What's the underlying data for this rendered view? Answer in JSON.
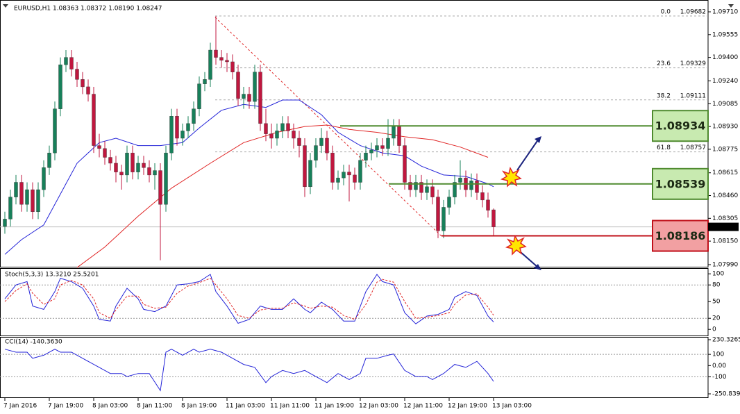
{
  "chart_data": [
    {
      "type": "candlestick",
      "title": "EURUSD,H1  1.08363 1.08372 1.08190 1.08247",
      "up_color": "#17805a",
      "down_color": "#c0173f",
      "xlim": [
        -0.875,
        126.625
      ],
      "ylim": [
        1.07971,
        1.09781
      ],
      "xticks": [
        {
          "value": 0,
          "label": "7 Jan 2016"
        },
        {
          "value": 8,
          "label": "7 Jan 19:00"
        },
        {
          "value": 16,
          "label": "8 Jan 03:00"
        },
        {
          "value": 24,
          "label": "8 Jan 11:00"
        },
        {
          "value": 32,
          "label": "8 Jan 19:00"
        },
        {
          "value": 40,
          "label": "11 Jan 03:00"
        },
        {
          "value": 48,
          "label": "11 Jan 11:00"
        },
        {
          "value": 56,
          "label": "11 Jan 19:00"
        },
        {
          "value": 64,
          "label": "12 Jan 03:00"
        },
        {
          "value": 72,
          "label": "12 Jan 11:00"
        },
        {
          "value": 80,
          "label": "12 Jan 19:00"
        },
        {
          "value": 88,
          "label": "13 Jan 03:00"
        }
      ],
      "yticks": [
        {
          "value": 1.0971,
          "label": "1.09710"
        },
        1.09555,
        {
          "value": 1.094,
          "label": "1.09400"
        },
        {
          "value": 1.0924,
          "label": "1.09240"
        },
        1.09085,
        {
          "value": 1.0893,
          "label": "1.08930"
        },
        1.08775,
        1.08615,
        {
          "value": 1.0846,
          "label": "1.08460"
        },
        1.08305,
        {
          "value": 1.0815,
          "label": "1.08150"
        },
        {
          "value": 1.0799,
          "label": "1.07990"
        }
      ],
      "ohlc": [
        [
          1.0825,
          1.0835,
          1.082,
          1.083
        ],
        [
          1.083,
          1.085,
          1.0825,
          1.0845
        ],
        [
          1.0845,
          1.086,
          1.084,
          1.0855
        ],
        [
          1.0855,
          1.086,
          1.0835,
          1.084
        ],
        [
          1.084,
          1.0855,
          1.0835,
          1.085
        ],
        [
          1.085,
          1.0855,
          1.083,
          1.0835
        ],
        [
          1.0835,
          1.0855,
          1.083,
          1.085
        ],
        [
          1.085,
          1.087,
          1.0845,
          1.0865
        ],
        [
          1.0865,
          1.088,
          1.086,
          1.0875
        ],
        [
          1.0875,
          1.091,
          1.087,
          1.0905
        ],
        [
          1.0905,
          1.094,
          1.09,
          1.0935
        ],
        [
          1.0935,
          1.0945,
          1.093,
          1.094
        ],
        [
          1.094,
          1.0945,
          1.0927,
          1.0932
        ],
        [
          1.0932,
          1.0937,
          1.092,
          1.0925
        ],
        [
          1.0925,
          1.093,
          1.0915,
          1.092
        ],
        [
          1.092,
          1.0925,
          1.091,
          1.0915
        ],
        [
          1.0915,
          1.092,
          1.0875,
          1.088
        ],
        [
          1.088,
          1.0888,
          1.0872,
          1.0878
        ],
        [
          1.0878,
          1.0883,
          1.0867,
          1.0872
        ],
        [
          1.0872,
          1.0877,
          1.0863,
          1.0868
        ],
        [
          1.0868,
          1.0873,
          1.0855,
          1.0862
        ],
        [
          1.0862,
          1.0867,
          1.085,
          1.086
        ],
        [
          1.086,
          1.088,
          1.0855,
          1.0875
        ],
        [
          1.0875,
          1.088,
          1.0857,
          1.0862
        ],
        [
          1.0862,
          1.0873,
          1.0857,
          1.0868
        ],
        [
          1.0868,
          1.0873,
          1.086,
          1.0865
        ],
        [
          1.0865,
          1.087,
          1.0855,
          1.086
        ],
        [
          1.086,
          1.0868,
          1.085,
          1.0863
        ],
        [
          1.0863,
          1.0868,
          1.0802,
          1.084
        ],
        [
          1.084,
          1.088,
          1.0835,
          1.0875
        ],
        [
          1.0875,
          1.0905,
          1.087,
          1.09
        ],
        [
          1.09,
          1.0905,
          1.088,
          1.0885
        ],
        [
          1.0885,
          1.0895,
          1.088,
          1.089
        ],
        [
          1.089,
          1.09,
          1.0885,
          1.0895
        ],
        [
          1.0895,
          1.091,
          1.089,
          1.0905
        ],
        [
          1.0905,
          1.0927,
          1.09,
          1.0922
        ],
        [
          1.0922,
          1.093,
          1.0917,
          1.0925
        ],
        [
          1.0925,
          1.095,
          1.092,
          1.0945
        ],
        [
          1.0945,
          1.0968,
          1.0935,
          1.094
        ],
        [
          1.094,
          1.0945,
          1.0933,
          1.0938
        ],
        [
          1.0938,
          1.0943,
          1.093,
          1.0937
        ],
        [
          1.0937,
          1.0942,
          1.0925,
          1.093
        ],
        [
          1.093,
          1.0935,
          1.0907,
          1.0912
        ],
        [
          1.0912,
          1.092,
          1.0905,
          1.0915
        ],
        [
          1.0915,
          1.092,
          1.0905,
          1.091
        ],
        [
          1.091,
          1.0935,
          1.0905,
          1.093
        ],
        [
          1.093,
          1.0935,
          1.089,
          1.0895
        ],
        [
          1.0895,
          1.0905,
          1.0883,
          1.0888
        ],
        [
          1.0888,
          1.0895,
          1.0878,
          1.0885
        ],
        [
          1.0885,
          1.0895,
          1.088,
          1.089
        ],
        [
          1.089,
          1.09,
          1.0885,
          1.0895
        ],
        [
          1.0895,
          1.09,
          1.0885,
          1.089
        ],
        [
          1.089,
          1.0895,
          1.0878,
          1.0885
        ],
        [
          1.0885,
          1.089,
          1.0872,
          1.088
        ],
        [
          1.088,
          1.0885,
          1.0845,
          1.0852
        ],
        [
          1.0852,
          1.0875,
          1.0847,
          1.087
        ],
        [
          1.087,
          1.0885,
          1.0865,
          1.088
        ],
        [
          1.088,
          1.0892,
          1.0875,
          1.0885
        ],
        [
          1.0885,
          1.089,
          1.087,
          1.0875
        ],
        [
          1.0875,
          1.088,
          1.085,
          1.0855
        ],
        [
          1.0855,
          1.0863,
          1.085,
          1.0858
        ],
        [
          1.0858,
          1.0867,
          1.0853,
          1.0862
        ],
        [
          1.0862,
          1.0867,
          1.0842,
          1.086
        ],
        [
          1.086,
          1.0865,
          1.085,
          1.0855
        ],
        [
          1.0855,
          1.0875,
          1.085,
          1.087
        ],
        [
          1.087,
          1.088,
          1.0865,
          1.0875
        ],
        [
          1.0875,
          1.0882,
          1.087,
          1.0877
        ],
        [
          1.0877,
          1.0885,
          1.0872,
          1.088
        ],
        [
          1.088,
          1.0885,
          1.0873,
          1.0878
        ],
        [
          1.0878,
          1.0898,
          1.0873,
          1.0885
        ],
        [
          1.0885,
          1.0898,
          1.088,
          1.0893
        ],
        [
          1.0893,
          1.0898,
          1.0875,
          1.088
        ],
        [
          1.088,
          1.0885,
          1.085,
          1.0855
        ],
        [
          1.0855,
          1.086,
          1.0845,
          1.085
        ],
        [
          1.085,
          1.086,
          1.0845,
          1.0855
        ],
        [
          1.0855,
          1.086,
          1.0843,
          1.0848
        ],
        [
          1.0848,
          1.0857,
          1.0843,
          1.0852
        ],
        [
          1.0852,
          1.0857,
          1.084,
          1.0845
        ],
        [
          1.0845,
          1.085,
          1.0817,
          1.0822
        ],
        [
          1.0822,
          1.0843,
          1.0817,
          1.0838
        ],
        [
          1.0838,
          1.085,
          1.0833,
          1.0845
        ],
        [
          1.0845,
          1.086,
          1.084,
          1.0855
        ],
        [
          1.0855,
          1.087,
          1.085,
          1.0858
        ],
        [
          1.0858,
          1.0863,
          1.0845,
          1.085
        ],
        [
          1.085,
          1.0861,
          1.0845,
          1.0856
        ],
        [
          1.0856,
          1.0861,
          1.0843,
          1.0848
        ],
        [
          1.0848,
          1.0853,
          1.0838,
          1.0843
        ],
        [
          1.0843,
          1.0848,
          1.0831,
          1.0836
        ],
        [
          1.08363,
          1.08372,
          1.0819,
          1.08247
        ]
      ],
      "ma_lines": [
        {
          "color": "#2323d8",
          "x": [
            0,
            3,
            7,
            10,
            13,
            17,
            20,
            24,
            28,
            32,
            35,
            39,
            43,
            47,
            50,
            53,
            57,
            60,
            64,
            68,
            72,
            75,
            79,
            83,
            87,
            88
          ],
          "values": [
            1.0806,
            1.0816,
            1.0826,
            1.0847,
            1.0868,
            1.0882,
            1.0885,
            1.088,
            1.088,
            1.0882,
            1.0892,
            1.0904,
            1.0908,
            1.0906,
            1.0911,
            1.0911,
            1.0901,
            1.0889,
            1.088,
            1.0875,
            1.0873,
            1.0866,
            1.086,
            1.0859,
            1.0854,
            1.0852
          ]
        },
        {
          "color": "#e02424",
          "x": [
            13,
            18,
            24,
            30,
            37,
            43,
            49,
            54,
            58,
            62,
            67,
            72,
            77,
            82,
            87
          ],
          "values": [
            1.0797,
            1.0811,
            1.0832,
            1.0851,
            1.0868,
            1.0882,
            1.0889,
            1.0893,
            1.0894,
            1.0891,
            1.0889,
            1.0886,
            1.0884,
            1.0879,
            1.0872
          ]
        }
      ],
      "last_price": 1.08247,
      "fib_levels": [
        {
          "ratio": "0.0",
          "price": 1.09682
        },
        {
          "ratio": "23.6",
          "price": 1.09329
        },
        {
          "ratio": "38.2",
          "price": 1.09111
        },
        {
          "ratio": "61.8",
          "price": 1.08757
        }
      ],
      "levels": [
        {
          "value": 1.08934,
          "color": "#4e8a2e",
          "fill": "#c8eab0"
        },
        {
          "value": 1.08539,
          "color": "#4e8a2e",
          "fill": "#c8eab0"
        },
        {
          "value": 1.08186,
          "color": "#c0101a",
          "fill": "#f2a0a2"
        }
      ]
    },
    {
      "type": "line",
      "title": "Stoch(5,3,3) 13.3210 25.5201",
      "xlim": [
        -0.875,
        126.625
      ],
      "ylim": [
        -11,
        109
      ],
      "yticks": [
        100,
        80,
        50,
        20,
        0
      ],
      "grid_levels": [
        80,
        20
      ],
      "x": [
        0,
        2,
        4,
        5,
        7,
        9,
        10,
        12,
        14,
        16,
        17,
        19,
        20,
        22,
        24,
        25,
        27,
        29,
        31,
        33,
        35,
        37,
        38,
        40,
        42,
        44,
        46,
        48,
        50,
        52,
        54,
        55,
        57,
        59,
        61,
        63,
        65,
        67,
        68,
        70,
        72,
        74,
        76,
        78,
        80,
        81,
        83,
        85,
        87,
        88
      ],
      "series": [
        {
          "color": "#2323d8",
          "dashed": false,
          "values": [
            55,
            80,
            86,
            42,
            36,
            68,
            92,
            86,
            74,
            42,
            18,
            15,
            42,
            74,
            55,
            36,
            32,
            42,
            80,
            82,
            86,
            99,
            68,
            42,
            11,
            18,
            42,
            36,
            36,
            55,
            36,
            30,
            49,
            36,
            15,
            15,
            68,
            99,
            86,
            80,
            30,
            10,
            24,
            27,
            36,
            58,
            68,
            61,
            24,
            13.321
          ]
        },
        {
          "color": "#e02424",
          "dashed": true,
          "values": [
            50,
            70,
            82,
            65,
            45,
            55,
            80,
            88,
            80,
            55,
            30,
            20,
            35,
            60,
            60,
            45,
            38,
            40,
            65,
            78,
            84,
            92,
            80,
            55,
            25,
            20,
            35,
            38,
            38,
            48,
            42,
            38,
            42,
            40,
            25,
            18,
            45,
            85,
            90,
            85,
            50,
            20,
            22,
            25,
            30,
            45,
            62,
            64,
            40,
            25.5201
          ]
        }
      ]
    },
    {
      "type": "line",
      "title": "CCI(14) -140.3630",
      "xlim": [
        -0.875,
        126.625
      ],
      "ylim": [
        -250.8394,
        230.3265
      ],
      "yticks": [
        230.3265,
        100,
        {
          "value": 0,
          "label": "0.00"
        },
        -100,
        -250.8394
      ],
      "grid_levels": [
        100,
        -100
      ],
      "x": [
        0,
        2,
        4,
        5,
        7,
        9,
        10,
        12,
        14,
        16,
        18,
        19,
        21,
        22,
        24,
        26,
        28,
        29,
        30,
        32,
        34,
        35,
        37,
        39,
        41,
        43,
        45,
        47,
        48,
        50,
        52,
        54,
        56,
        58,
        60,
        62,
        64,
        65,
        67,
        69,
        70,
        72,
        74,
        76,
        77,
        79,
        81,
        83,
        85,
        87,
        88
      ],
      "series": [
        {
          "color": "#2323d8",
          "dashed": false,
          "values": [
            146,
            119,
            119,
            65,
            92,
            146,
            119,
            119,
            65,
            11,
            -43,
            -70,
            -70,
            -97,
            -70,
            -70,
            -222,
            119,
            146,
            92,
            146,
            119,
            146,
            119,
            65,
            11,
            -16,
            -151,
            -97,
            -43,
            -70,
            -43,
            -97,
            -151,
            -70,
            -124,
            -70,
            65,
            65,
            92,
            103,
            -43,
            -97,
            -97,
            -124,
            -70,
            11,
            -16,
            38,
            -70,
            -140.363
          ]
        }
      ]
    }
  ]
}
